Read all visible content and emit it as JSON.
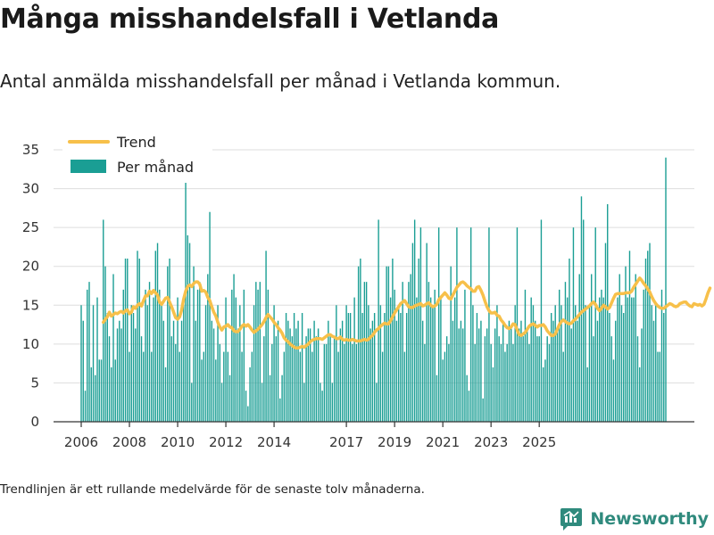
{
  "title": "Många misshandelsfall i Vetlanda",
  "subtitle": "Antal anmälda misshandelsfall per månad i Vetlanda kommun.",
  "footnote": "Trendlinjen är ett rullande medelvärde för de senaste tolv månaderna.",
  "brand": "Newsworthy",
  "colors": {
    "bar": "#1a9e94",
    "trend": "#f7c04a",
    "grid": "#dddddd",
    "axis": "#333333"
  },
  "chart_data": {
    "type": "bar",
    "ylim": [
      0,
      35
    ],
    "y_ticks": [
      0,
      5,
      10,
      15,
      20,
      25,
      30,
      35
    ],
    "x_ticks": [
      "2006",
      "2008",
      "2010",
      "2012",
      "2014",
      "2017",
      "2019",
      "2021",
      "2023",
      "2025"
    ],
    "legend": {
      "placement": "top-left",
      "entries": [
        "Trend",
        "Per månad"
      ]
    },
    "start_month": "2006-01",
    "series": [
      {
        "name": "Per månad",
        "values": [
          15,
          13,
          4,
          17,
          18,
          7,
          15,
          6,
          16,
          8,
          8,
          26,
          20,
          14,
          11,
          7,
          19,
          8,
          12,
          13,
          12,
          17,
          21,
          21,
          9,
          15,
          14,
          12,
          22,
          21,
          11,
          9,
          17,
          15,
          18,
          9,
          16,
          22,
          23,
          17,
          15,
          13,
          7,
          20,
          21,
          11,
          13,
          10,
          16,
          9,
          13,
          16,
          31,
          24,
          23,
          5,
          20,
          13,
          17,
          18,
          8,
          9,
          15,
          19,
          27,
          13,
          12,
          8,
          15,
          10,
          5,
          9,
          16,
          9,
          6,
          17,
          19,
          16,
          12,
          15,
          9,
          17,
          4,
          2,
          7,
          9,
          15,
          18,
          17,
          18,
          5,
          11,
          22,
          17,
          6,
          10,
          15,
          11,
          13,
          3,
          6,
          9,
          14,
          13,
          12,
          11,
          14,
          12,
          13,
          9,
          14,
          5,
          11,
          12,
          12,
          9,
          13,
          11,
          12,
          5,
          4,
          10,
          10,
          13,
          11,
          5,
          11,
          15,
          9,
          12,
          13,
          10,
          15,
          14,
          14,
          10,
          16,
          10,
          20,
          21,
          14,
          18,
          18,
          15,
          12,
          13,
          14,
          5,
          26,
          15,
          9,
          14,
          20,
          20,
          16,
          21,
          17,
          13,
          15,
          14,
          18,
          9,
          14,
          18,
          19,
          23,
          26,
          16,
          21,
          25,
          13,
          10,
          23,
          18,
          16,
          15,
          17,
          6,
          25,
          16,
          8,
          9,
          11,
          10,
          20,
          13,
          16,
          25,
          12,
          13,
          12,
          17,
          6,
          4,
          25,
          15,
          10,
          14,
          12,
          13,
          3,
          11,
          12,
          25,
          10,
          7,
          12,
          15,
          11,
          10,
          13,
          9,
          10,
          13,
          12,
          10,
          15,
          25,
          12,
          13,
          11,
          17,
          12,
          10,
          16,
          15,
          13,
          11,
          11,
          26,
          7,
          8,
          11,
          10,
          14,
          13,
          15,
          12,
          17,
          15,
          9,
          18,
          16,
          21,
          12,
          25,
          15,
          13,
          19,
          29,
          26,
          15,
          7,
          15,
          19,
          11,
          25,
          13,
          16,
          17,
          16,
          23,
          28,
          14,
          11,
          8,
          13,
          16,
          19,
          15,
          14,
          20,
          16,
          22,
          16,
          16,
          19,
          11,
          7,
          12,
          17,
          21,
          22,
          23,
          15,
          13,
          15,
          9,
          9,
          17,
          14,
          34
        ]
      },
      {
        "name": "Trend",
        "values": [
          null,
          null,
          null,
          null,
          null,
          null,
          null,
          null,
          null,
          null,
          null,
          12.8,
          13.2,
          13.5,
          14.1,
          13.6,
          13.8,
          14,
          13.9,
          14.1,
          14.2,
          14,
          14.3,
          14.4,
          13.9,
          14.1,
          14.8,
          14.6,
          15,
          15.2,
          14.9,
          15.6,
          16.2,
          16.2,
          16.8,
          16.5,
          16.9,
          16.6,
          16.3,
          15.4,
          15.1,
          15.5,
          15.9,
          16,
          15.4,
          14.8,
          14.1,
          13.4,
          13.2,
          13.5,
          14.4,
          15.8,
          16.8,
          17.4,
          17.6,
          17.4,
          17.8,
          18,
          18,
          17.7,
          16.8,
          16.9,
          16.7,
          16,
          15.6,
          14.8,
          14.1,
          13.6,
          12.8,
          12.2,
          11.8,
          12.2,
          12.3,
          12.5,
          12.2,
          12.1,
          11.7,
          11.6,
          11.6,
          11.9,
          12.3,
          12.5,
          12.3,
          12.5,
          12.2,
          11.8,
          11.5,
          11.7,
          11.9,
          12.2,
          12.5,
          12.9,
          13.4,
          13.8,
          13.5,
          13.2,
          12.8,
          12.5,
          12.1,
          11.8,
          11.4,
          10.8,
          10.5,
          10.3,
          10,
          9.8,
          9.6,
          9.5,
          9.5,
          9.6,
          9.7,
          9.6,
          9.8,
          10,
          10.3,
          10.5,
          10.6,
          10.7,
          10.7,
          10.7,
          10.6,
          10.8,
          11,
          11.2,
          11.2,
          11,
          10.9,
          10.7,
          10.7,
          10.9,
          10.6,
          10.5,
          10.6,
          10.5,
          10.5,
          10.6,
          10.5,
          10.4,
          10.4,
          10.4,
          10.5,
          10.6,
          10.5,
          10.6,
          10.9,
          11.1,
          11.5,
          11.8,
          12,
          12.3,
          12.5,
          12.7,
          12.6,
          12.6,
          13,
          13.5,
          14,
          14.4,
          14.8,
          15.2,
          15.4,
          15.6,
          15.2,
          14.8,
          14.7,
          14.7,
          14.9,
          15,
          15.1,
          15.2,
          14.9,
          15,
          15.2,
          15.3,
          15,
          14.8,
          14.9,
          15.1,
          15.7,
          16,
          16.3,
          16.6,
          16.3,
          15.9,
          15.8,
          16.3,
          16.8,
          17.3,
          17.6,
          17.9,
          18,
          17.8,
          17.5,
          17.3,
          17.1,
          16.8,
          16.8,
          17.3,
          17.4,
          16.9,
          16.3,
          15.5,
          14.8,
          14.3,
          14,
          14,
          14.1,
          13.7,
          13.6,
          13.1,
          12.8,
          12.4,
          12.1,
          12,
          12.2,
          12.6,
          12.5,
          11.8,
          11.2,
          11.1,
          11.3,
          11.5,
          11.9,
          12.3,
          12.5,
          12.6,
          12.4,
          12.2,
          12.4,
          12.4,
          12.5,
          12.2,
          11.7,
          11.4,
          11.1,
          11.1,
          11.3,
          11.9,
          12.5,
          12.9,
          13.1,
          12.9,
          12.7,
          12.6,
          12.7,
          13,
          13.2,
          13.5,
          13.8,
          14.1,
          14.3,
          14.5,
          14.7,
          14.9,
          15.2,
          15.4,
          15.1,
          14.6,
          14.3,
          14.6,
          15,
          14.8,
          14.5,
          14.7,
          15.3,
          15.9,
          16.4,
          16.5,
          16.5,
          16.5,
          16.5,
          16.6,
          16.6,
          16.6,
          16.8,
          17.3,
          17.7,
          18.1,
          18.5,
          18.2,
          17.8,
          17.5,
          17.1,
          16.7,
          16.1,
          15.6,
          15.2,
          14.9,
          14.7,
          14.6,
          14.6,
          14.8,
          15,
          15.2,
          15.1,
          14.9,
          14.8,
          14.9,
          15.2,
          15.3,
          15.4,
          15.4,
          15.1,
          14.9,
          14.8,
          15.2,
          15.1,
          15,
          15.1,
          14.9,
          15.1,
          15.8,
          16.6,
          17.2
        ]
      }
    ]
  }
}
